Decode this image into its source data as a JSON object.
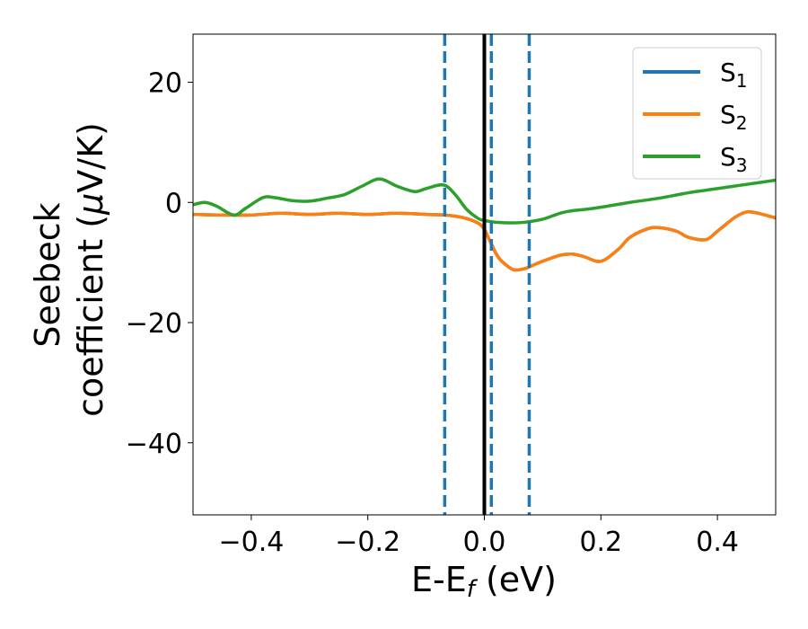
{
  "chart_data": {
    "type": "line",
    "xlabel": {
      "main": "E-E",
      "sub": "f",
      "suffix": " (eV)"
    },
    "ylabel": {
      "line1": "Seebeck",
      "line2_pre": "coefficient  (",
      "mu": "μ",
      "line2_post": "V/K)"
    },
    "xlim": [
      -0.5,
      0.5
    ],
    "ylim": [
      -52,
      28
    ],
    "xticks": [
      -0.4,
      -0.2,
      0.0,
      0.2,
      0.4
    ],
    "xtick_labels": [
      "−0.4",
      "−0.2",
      "0.0",
      "0.2",
      "0.4"
    ],
    "yticks": [
      20,
      0,
      -20,
      -40
    ],
    "ytick_labels": [
      "20",
      "0",
      "−20",
      "−40"
    ],
    "grid": false,
    "legend_position": "top-right",
    "series": [
      {
        "name": "S",
        "sub": "1",
        "color": "#1f77b4",
        "x": [
          -0.5,
          -0.45,
          -0.4,
          -0.35,
          -0.3,
          -0.25,
          -0.2,
          -0.15,
          -0.1,
          -0.07,
          -0.05,
          -0.03,
          -0.01,
          0.0,
          0.01,
          0.02,
          0.03,
          0.05,
          0.07,
          0.08,
          0.1,
          0.13,
          0.15,
          0.17,
          0.2,
          0.23,
          0.25,
          0.28,
          0.3,
          0.33,
          0.35,
          0.38,
          0.4,
          0.43,
          0.45,
          0.47,
          0.5
        ],
        "y": [
          -2.0,
          -2.1,
          -2.1,
          -1.8,
          -2.0,
          -1.8,
          -2.0,
          -1.8,
          -2.0,
          -2.1,
          -2.3,
          -2.7,
          -3.5,
          -4.5,
          -6.5,
          -8.5,
          -9.8,
          -11.2,
          -11.0,
          -10.6,
          -9.8,
          -8.8,
          -8.6,
          -9.0,
          -9.8,
          -7.8,
          -5.8,
          -4.4,
          -4.2,
          -4.8,
          -5.8,
          -6.2,
          -4.8,
          -2.5,
          -1.6,
          -1.8,
          -2.6
        ]
      },
      {
        "name": "S",
        "sub": "2",
        "color": "#ff7f0e",
        "x": [
          -0.5,
          -0.45,
          -0.4,
          -0.35,
          -0.3,
          -0.25,
          -0.2,
          -0.15,
          -0.1,
          -0.07,
          -0.05,
          -0.03,
          -0.01,
          0.0,
          0.01,
          0.02,
          0.03,
          0.05,
          0.07,
          0.08,
          0.1,
          0.13,
          0.15,
          0.17,
          0.2,
          0.23,
          0.25,
          0.28,
          0.3,
          0.33,
          0.35,
          0.38,
          0.4,
          0.43,
          0.45,
          0.47,
          0.5
        ],
        "y": [
          -2.0,
          -2.1,
          -2.1,
          -1.8,
          -2.0,
          -1.8,
          -2.0,
          -1.8,
          -2.0,
          -2.1,
          -2.3,
          -2.7,
          -3.5,
          -4.5,
          -6.5,
          -8.5,
          -9.8,
          -11.2,
          -11.0,
          -10.6,
          -9.8,
          -8.8,
          -8.6,
          -9.0,
          -9.8,
          -7.8,
          -5.8,
          -4.4,
          -4.2,
          -4.8,
          -5.8,
          -6.2,
          -4.8,
          -2.5,
          -1.6,
          -1.8,
          -2.6
        ]
      },
      {
        "name": "S",
        "sub": "3",
        "color": "#2ca02c",
        "x": [
          -0.5,
          -0.48,
          -0.46,
          -0.43,
          -0.41,
          -0.38,
          -0.36,
          -0.33,
          -0.3,
          -0.27,
          -0.24,
          -0.21,
          -0.18,
          -0.15,
          -0.12,
          -0.1,
          -0.07,
          -0.05,
          -0.03,
          -0.01,
          0.0,
          0.02,
          0.05,
          0.07,
          0.1,
          0.13,
          0.15,
          0.17,
          0.2,
          0.25,
          0.3,
          0.35,
          0.4,
          0.45,
          0.5
        ],
        "y": [
          -0.4,
          0.0,
          -0.6,
          -2.1,
          -1.0,
          0.8,
          0.8,
          0.3,
          0.2,
          0.7,
          1.3,
          2.7,
          3.9,
          2.7,
          1.8,
          2.3,
          2.9,
          1.3,
          -1.2,
          -2.7,
          -3.0,
          -3.3,
          -3.4,
          -3.3,
          -2.8,
          -1.8,
          -1.4,
          -1.2,
          -0.8,
          0.0,
          0.7,
          1.6,
          2.3,
          3.0,
          3.7
        ]
      }
    ],
    "vlines": [
      {
        "x": 0.0,
        "style": "solid",
        "color": "#000000"
      },
      {
        "x": -0.068,
        "style": "dashed",
        "color": "#1f77b4"
      },
      {
        "x": 0.012,
        "style": "dashed",
        "color": "#1f77b4"
      },
      {
        "x": 0.077,
        "style": "dashed",
        "color": "#1f77b4"
      }
    ]
  }
}
